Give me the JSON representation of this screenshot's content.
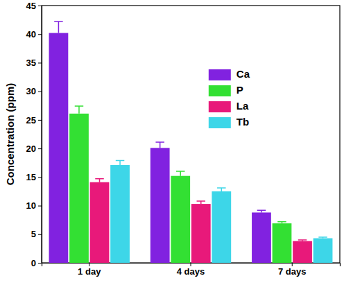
{
  "chart_data": {
    "type": "bar",
    "y_label": "Concentration (ppm)",
    "categories": [
      "1 day",
      "4 days",
      "7 days"
    ],
    "series": [
      {
        "name": "Ca",
        "color": "#8122e0",
        "values": [
          40.2,
          20.1,
          8.8
        ],
        "errors": [
          2.0,
          1.0,
          0.4
        ]
      },
      {
        "name": "P",
        "color": "#33e033",
        "values": [
          26.1,
          15.2,
          6.9
        ],
        "errors": [
          1.3,
          0.8,
          0.3
        ]
      },
      {
        "name": "La",
        "color": "#e8197a",
        "values": [
          14.1,
          10.3,
          3.8
        ],
        "errors": [
          0.6,
          0.5,
          0.2
        ]
      },
      {
        "name": "Tb",
        "color": "#3dd6e8",
        "values": [
          17.1,
          12.5,
          4.3
        ],
        "errors": [
          0.8,
          0.6,
          0.2
        ]
      }
    ],
    "ylim": [
      0,
      45
    ],
    "yticks": [
      0,
      5,
      10,
      15,
      20,
      25,
      30,
      35,
      40,
      45
    ],
    "grid": false,
    "legend": "upper right"
  }
}
